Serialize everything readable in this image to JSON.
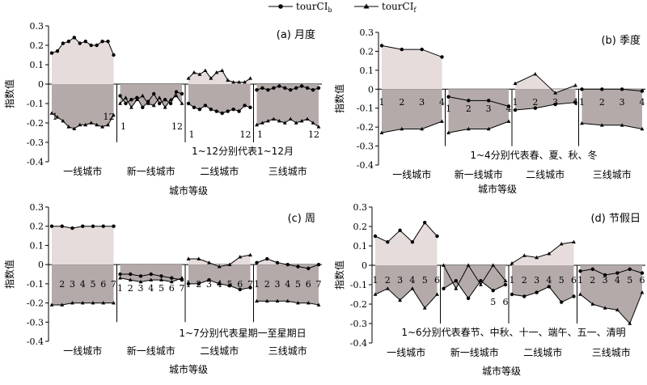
{
  "legend": {
    "series_b": "tourCI",
    "series_b_sub": "b",
    "series_f": "tourCI",
    "series_f_sub": "f"
  },
  "chart_data": [
    {
      "type": "area",
      "panel_label": "(a) 月度",
      "ylabel": "指数值",
      "xlabel": "城市等级",
      "ylim": [
        -0.4,
        0.3
      ],
      "yticks": [
        "-0.4",
        "-0.3",
        "-0.2",
        "-0.1",
        "0",
        "0.1",
        "0.2",
        "0.3"
      ],
      "groups": [
        "一线城市",
        "新一线城市",
        "二线城市",
        "三线城市"
      ],
      "point_labels": [
        [
          "1",
          "12"
        ],
        [
          "1",
          "12"
        ],
        [
          "1",
          "12"
        ],
        [
          "1",
          "12"
        ]
      ],
      "annotation": "1~12分别代表1~12月",
      "series": [
        {
          "name": "tourCIb",
          "values": [
            [
              0.16,
              0.17,
              0.21,
              0.22,
              0.24,
              0.21,
              0.22,
              0.2,
              0.2,
              0.22,
              0.22,
              0.15
            ],
            [
              -0.06,
              -0.1,
              -0.08,
              -0.07,
              -0.12,
              -0.09,
              -0.05,
              -0.1,
              -0.08,
              -0.1,
              -0.04,
              -0.05
            ],
            [
              -0.1,
              -0.12,
              -0.13,
              -0.11,
              -0.13,
              -0.14,
              -0.15,
              -0.14,
              -0.13,
              -0.14,
              -0.11,
              -0.12
            ],
            [
              -0.03,
              -0.02,
              -0.03,
              -0.02,
              -0.01,
              -0.02,
              -0.03,
              -0.02,
              -0.01,
              -0.02,
              -0.03,
              -0.02
            ]
          ]
        },
        {
          "name": "tourCIf",
          "values": [
            [
              -0.15,
              -0.17,
              -0.19,
              -0.22,
              -0.23,
              -0.21,
              -0.21,
              -0.2,
              -0.21,
              -0.22,
              -0.21,
              -0.16
            ],
            [
              -0.1,
              -0.07,
              -0.12,
              -0.08,
              -0.06,
              -0.1,
              -0.11,
              -0.07,
              -0.12,
              -0.08,
              -0.06,
              -0.1
            ],
            [
              0.03,
              0.06,
              0.05,
              0.07,
              0.03,
              0.06,
              0.07,
              0.02,
              0.01,
              0.01,
              0.01,
              0.03
            ],
            [
              -0.21,
              -0.2,
              -0.19,
              -0.18,
              -0.19,
              -0.2,
              -0.18,
              -0.2,
              -0.19,
              -0.18,
              -0.2,
              -0.22
            ]
          ]
        }
      ]
    },
    {
      "type": "area",
      "panel_label": "(b) 季度",
      "ylabel": "指数值",
      "xlabel": "城市等级",
      "ylim": [
        -0.4,
        0.3
      ],
      "yticks": [
        "-0.4",
        "-0.3",
        "-0.2",
        "-0.1",
        "0",
        "0.1",
        "0.2",
        "0.3"
      ],
      "groups": [
        "一线城市",
        "新一线城市",
        "二线城市",
        "三线城市"
      ],
      "point_labels": [
        [
          "1",
          "2",
          "3",
          "4"
        ],
        [
          "1",
          "2",
          "3",
          "4"
        ],
        [
          "1",
          "2",
          "3",
          "4"
        ],
        [
          "1",
          "2",
          "3",
          "4"
        ]
      ],
      "annotation": "1~4分别代表春、夏、秋、冬",
      "series": [
        {
          "name": "tourCIb",
          "values": [
            [
              0.23,
              0.21,
              0.21,
              0.17
            ],
            [
              -0.04,
              -0.06,
              -0.06,
              -0.09
            ],
            [
              -0.11,
              -0.1,
              -0.08,
              -0.07
            ],
            [
              0.0,
              0.0,
              0.0,
              -0.01
            ]
          ]
        },
        {
          "name": "tourCIf",
          "values": [
            [
              -0.23,
              -0.21,
              -0.21,
              -0.17
            ],
            [
              -0.23,
              -0.21,
              -0.21,
              -0.17
            ],
            [
              0.03,
              0.08,
              -0.02,
              0.02
            ],
            [
              -0.18,
              -0.19,
              -0.19,
              -0.21
            ]
          ]
        }
      ]
    },
    {
      "type": "area",
      "panel_label": "(c) 周",
      "ylabel": "指数值",
      "xlabel": "城市等级",
      "ylim": [
        -0.4,
        0.3
      ],
      "yticks": [
        "-0.4",
        "-0.3",
        "-0.2",
        "-0.1",
        "0",
        "0.1",
        "0.2",
        "0.3"
      ],
      "groups": [
        "一线城市",
        "新一线城市",
        "二线城市",
        "三线城市"
      ],
      "point_labels": [
        [
          "2",
          "3",
          "4",
          "5",
          "6",
          "7"
        ],
        [
          "1",
          "2",
          "3",
          "4",
          "5",
          "6",
          "7"
        ],
        [
          "1",
          "2",
          "3",
          "4",
          "5",
          "6",
          "7"
        ],
        [
          "1",
          "2",
          "3",
          "4",
          "5",
          "6",
          "7"
        ]
      ],
      "annotation": "1~7分别代表星期一至星期日",
      "series": [
        {
          "name": "tourCIb",
          "values": [
            [
              0.2,
              0.2,
              0.19,
              0.2,
              0.2,
              0.2,
              0.2
            ],
            [
              -0.05,
              -0.05,
              -0.06,
              -0.05,
              -0.06,
              -0.07,
              -0.08
            ],
            [
              -0.1,
              -0.1,
              -0.08,
              -0.1,
              -0.11,
              -0.13,
              -0.12
            ],
            [
              0.01,
              0.03,
              0.01,
              0.0,
              -0.01,
              -0.02,
              0.0
            ]
          ]
        },
        {
          "name": "tourCIf",
          "values": [
            [
              -0.21,
              -0.21,
              -0.2,
              -0.2,
              -0.2,
              -0.2,
              -0.2
            ],
            [
              -0.07,
              -0.08,
              -0.09,
              -0.08,
              -0.08,
              -0.09,
              -0.07
            ],
            [
              0.03,
              0.03,
              0.01,
              -0.01,
              0.0,
              0.04,
              0.05
            ],
            [
              -0.19,
              -0.19,
              -0.19,
              -0.19,
              -0.2,
              -0.2,
              -0.21
            ]
          ]
        }
      ]
    },
    {
      "type": "area",
      "panel_label": "(d) 节假日",
      "ylabel": "指数值",
      "xlabel": "城市等级",
      "ylim": [
        -0.4,
        0.3
      ],
      "yticks": [
        "-0.4",
        "-0.3",
        "-0.2",
        "-0.1",
        "0",
        "0.1",
        "0.2",
        "0.3"
      ],
      "groups": [
        "一线城市",
        "新一线城市",
        "二线城市",
        "三线城市"
      ],
      "point_labels": [
        [
          "1",
          "2",
          "3",
          "4",
          "5",
          "6"
        ],
        [
          "5",
          "6"
        ],
        [
          "1",
          "2",
          "3",
          "4",
          "5",
          "6"
        ],
        [
          "1",
          "2",
          "3",
          "4",
          "5",
          "6"
        ]
      ],
      "annotation": "1~6分别代表春节、中秋、十一、端午、五一、清明",
      "series": [
        {
          "name": "tourCIb",
          "values": [
            [
              0.15,
              0.12,
              0.18,
              0.12,
              0.22,
              0.15
            ],
            [
              -0.12,
              -0.08,
              -0.17,
              -0.08,
              -0.13,
              -0.1
            ],
            [
              -0.15,
              -0.16,
              -0.14,
              -0.11,
              -0.19,
              -0.16
            ],
            [
              -0.03,
              -0.02,
              -0.05,
              -0.04,
              -0.02,
              -0.04
            ]
          ]
        },
        {
          "name": "tourCIf",
          "values": [
            [
              -0.15,
              -0.12,
              -0.18,
              -0.12,
              -0.22,
              -0.15
            ],
            [
              0.0,
              -0.12,
              0.0,
              -0.1,
              0.0,
              -0.08
            ],
            [
              0.01,
              0.05,
              0.04,
              0.06,
              0.11,
              0.12
            ],
            [
              -0.15,
              -0.2,
              -0.22,
              -0.23,
              -0.3,
              -0.14
            ]
          ]
        }
      ]
    }
  ],
  "colors": {
    "fill_positive": "#e6dcdc",
    "fill_negative": "#b4aaaa",
    "line": "#000000",
    "axis": "#000000"
  }
}
